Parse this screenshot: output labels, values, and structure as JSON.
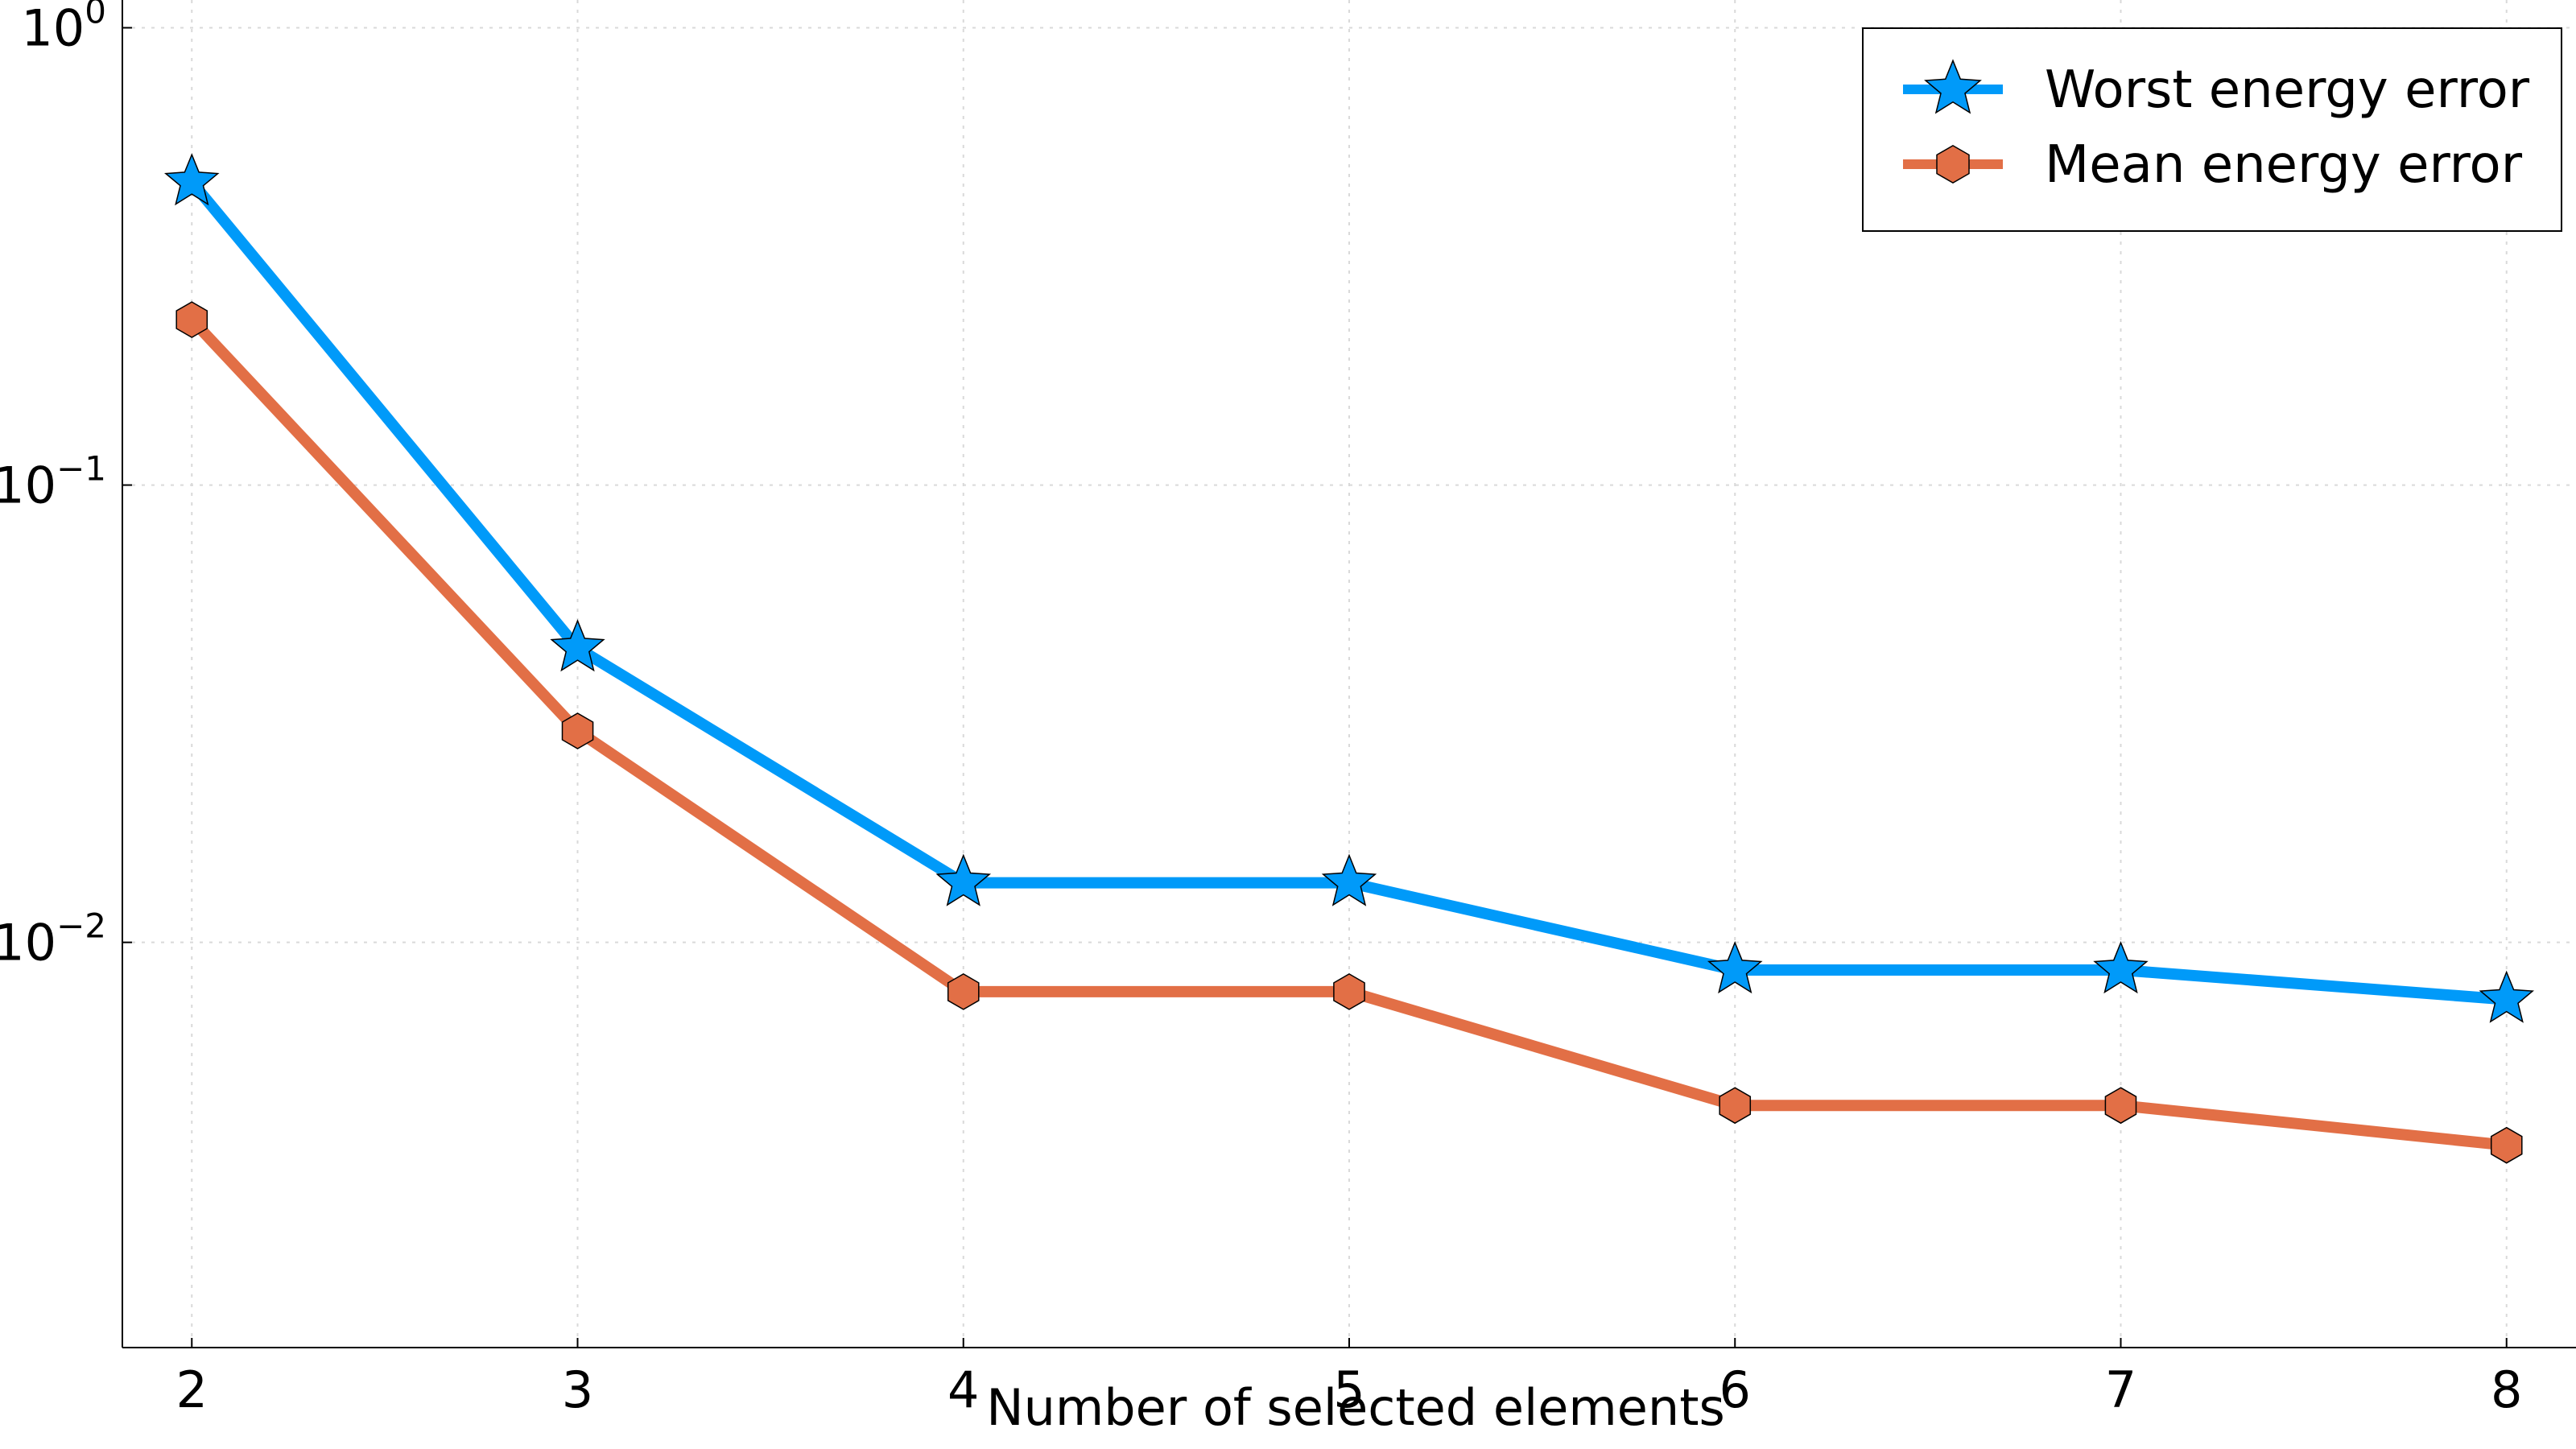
{
  "chart_data": {
    "type": "line",
    "xlabel": "Number of selected elements",
    "ylabel": "",
    "x": [
      2,
      3,
      4,
      5,
      6,
      7,
      8
    ],
    "xlim": [
      1.82,
      8.18
    ],
    "ylim": [
      0.0013,
      1.15
    ],
    "y_scale": "log",
    "x_ticks": [
      "2",
      "3",
      "4",
      "5",
      "6",
      "7",
      "8"
    ],
    "y_ticks": [
      {
        "value": 1,
        "base": "10",
        "exp": "0"
      },
      {
        "value": 0.1,
        "base": "10",
        "exp": "−1"
      },
      {
        "value": 0.01,
        "base": "10",
        "exp": "−2"
      }
    ],
    "grid": true,
    "legend_position": "top-right",
    "series": [
      {
        "name": "Worst energy error",
        "color": "#009af9",
        "marker": "star",
        "values": [
          0.46,
          0.044,
          0.0135,
          0.0135,
          0.0087,
          0.0087,
          0.0075
        ]
      },
      {
        "name": "Mean energy error",
        "color": "#e26f46",
        "marker": "hexagon",
        "values": [
          0.23,
          0.029,
          0.0078,
          0.0078,
          0.0044,
          0.0044,
          0.0036
        ]
      }
    ]
  }
}
